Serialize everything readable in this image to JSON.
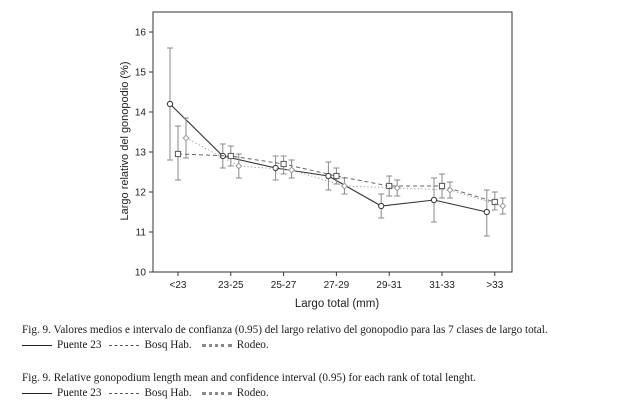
{
  "chart_data": {
    "type": "line",
    "title": "",
    "xlabel": "Largo total (mm)",
    "ylabel": "Largo relativo del gonopodio (%)",
    "categories": [
      "<23",
      "23-25",
      "25-27",
      "27-29",
      "29-31",
      "31-33",
      ">33"
    ],
    "ylim": [
      10,
      16.5
    ],
    "yticks": [
      "10",
      "11",
      "12",
      "13",
      "14",
      "15",
      "16"
    ],
    "grid": false,
    "error_bars": "confidence interval 0.95",
    "series": [
      {
        "name": "Puente 23",
        "style": "solid",
        "marker": "circle",
        "color": "#333333",
        "values": [
          14.2,
          12.9,
          12.6,
          12.4,
          11.65,
          11.8,
          11.5
        ],
        "lower": [
          12.8,
          12.6,
          12.3,
          12.05,
          11.35,
          11.25,
          10.9
        ],
        "upper": [
          15.6,
          13.2,
          12.9,
          12.75,
          11.95,
          12.35,
          12.05
        ]
      },
      {
        "name": "Bosq Hab.",
        "style": "dashed",
        "marker": "square",
        "color": "#666666",
        "values": [
          12.95,
          12.9,
          12.7,
          12.4,
          12.15,
          12.15,
          11.75
        ],
        "lower": [
          12.3,
          12.65,
          12.45,
          12.2,
          11.9,
          11.85,
          11.55
        ],
        "upper": [
          13.65,
          13.15,
          12.9,
          12.6,
          12.4,
          12.45,
          12.0
        ]
      },
      {
        "name": "Rodeo.",
        "style": "dotted",
        "marker": "diamond",
        "color": "#999999",
        "values": [
          13.35,
          12.65,
          12.55,
          12.15,
          12.1,
          12.05,
          11.65
        ],
        "lower": [
          12.85,
          12.35,
          12.35,
          11.95,
          11.9,
          11.85,
          11.45
        ],
        "upper": [
          13.85,
          12.95,
          12.8,
          12.35,
          12.3,
          12.25,
          11.85
        ]
      }
    ]
  },
  "captions": {
    "es": "Fig. 9. Valores medios  e intervalo de confianza (0.95) del largo relativo del gonopodio para las 7 clases de largo total.",
    "en": "Fig. 9. Relative gonopodium length mean and confidence interval (0.95) for each rank of total lenght."
  },
  "legend": {
    "es": [
      "Puente 23",
      "Bosq Hab.",
      "Rodeo."
    ],
    "en": [
      "Puente 23",
      "Bosq Hab.",
      "Rodeo."
    ]
  }
}
